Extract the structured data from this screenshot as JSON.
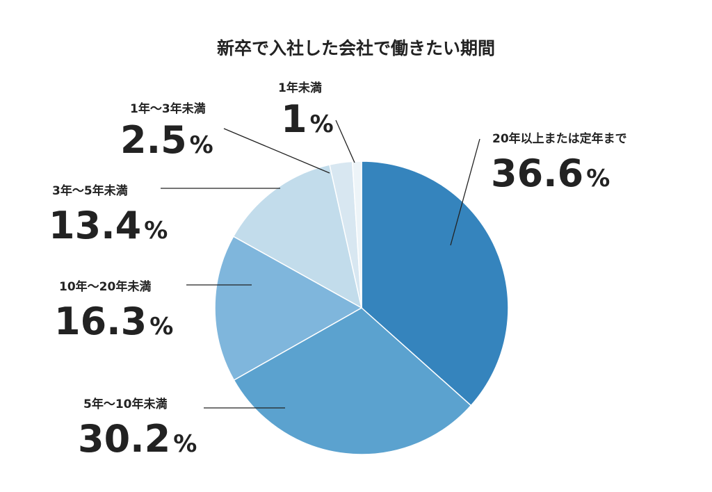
{
  "chart_data": {
    "type": "pie",
    "title": "新卒で入社した会社で働きたい期間",
    "unit": "%",
    "slices": [
      {
        "label": "20年以上または定年まで",
        "value": 36.6,
        "value_text": "36.6",
        "color": "#3584bd"
      },
      {
        "label": "5年〜10年未満",
        "value": 30.2,
        "value_text": "30.2",
        "color": "#5ba2cf"
      },
      {
        "label": "10年〜20年未満",
        "value": 16.3,
        "value_text": "16.3",
        "color": "#7fb6dc"
      },
      {
        "label": "3年〜5年未満",
        "value": 13.4,
        "value_text": "13.4",
        "color": "#c2dceb"
      },
      {
        "label": "1年〜3年未満",
        "value": 2.5,
        "value_text": "2.5",
        "color": "#d8e7f1"
      },
      {
        "label": "1年未満",
        "value": 1,
        "value_text": "1",
        "color": "#edf4f8"
      }
    ],
    "start_angle_deg": 0,
    "direction": "clockwise",
    "legend": "none"
  }
}
